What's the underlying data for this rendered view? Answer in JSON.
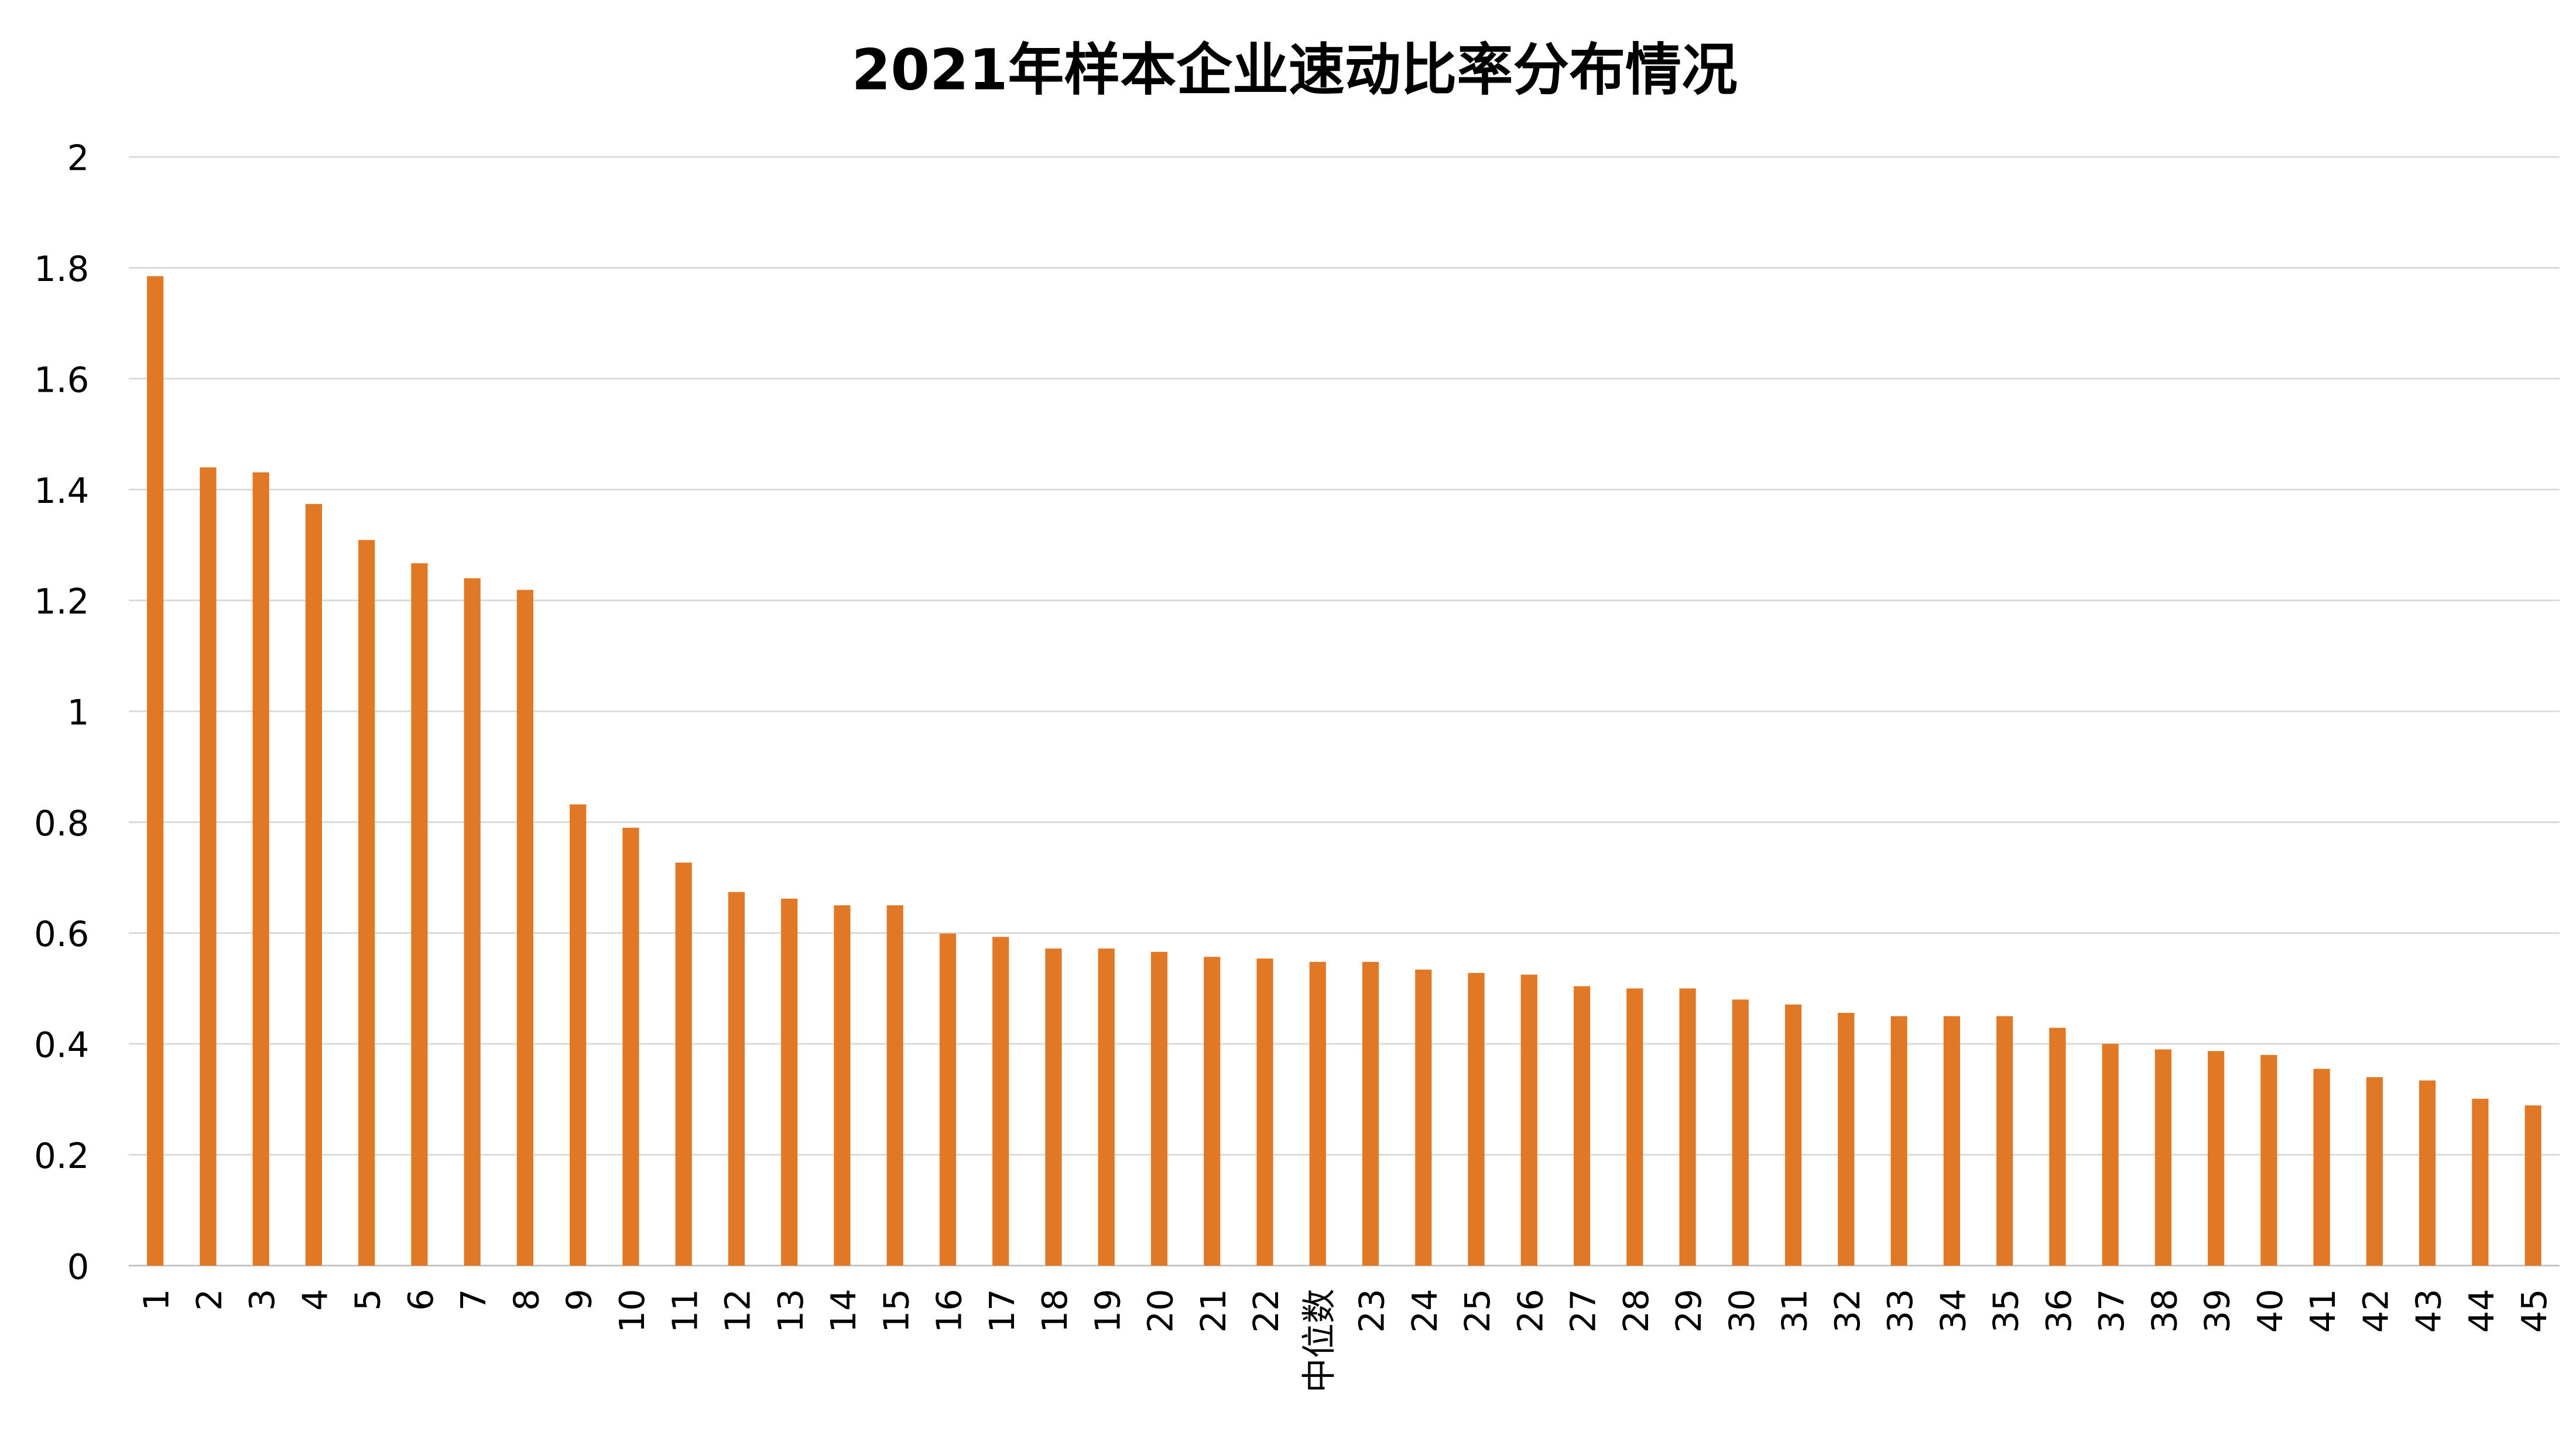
{
  "chart_data": {
    "type": "bar",
    "title": "2021年样本企业速动比率分布情况",
    "xlabel": "",
    "ylabel": "",
    "ylim": [
      0,
      2
    ],
    "yticks": [
      "0",
      "0.2",
      "0.4",
      "0.6",
      "0.8",
      "1",
      "1.2",
      "1.4",
      "1.6",
      "1.8",
      "2"
    ],
    "grid": true,
    "legend": "none",
    "bar_color": "#E07826",
    "categories": [
      "1",
      "2",
      "3",
      "4",
      "5",
      "6",
      "7",
      "8",
      "9",
      "10",
      "11",
      "12",
      "13",
      "14",
      "15",
      "16",
      "17",
      "18",
      "19",
      "20",
      "21",
      "22",
      "中位数",
      "23",
      "24",
      "25",
      "26",
      "27",
      "28",
      "29",
      "30",
      "31",
      "32",
      "33",
      "34",
      "35",
      "36",
      "37",
      "38",
      "39",
      "40",
      "41",
      "42",
      "43",
      "44",
      "45"
    ],
    "values": [
      1.785,
      1.44,
      1.431,
      1.374,
      1.309,
      1.267,
      1.24,
      1.219,
      0.832,
      0.79,
      0.727,
      0.674,
      0.662,
      0.65,
      0.65,
      0.599,
      0.593,
      0.572,
      0.572,
      0.566,
      0.557,
      0.554,
      0.548,
      0.548,
      0.534,
      0.528,
      0.525,
      0.504,
      0.5,
      0.5,
      0.48,
      0.471,
      0.456,
      0.45,
      0.45,
      0.45,
      0.429,
      0.4,
      0.39,
      0.387,
      0.38,
      0.355,
      0.34,
      0.334,
      0.301,
      0.289
    ]
  }
}
